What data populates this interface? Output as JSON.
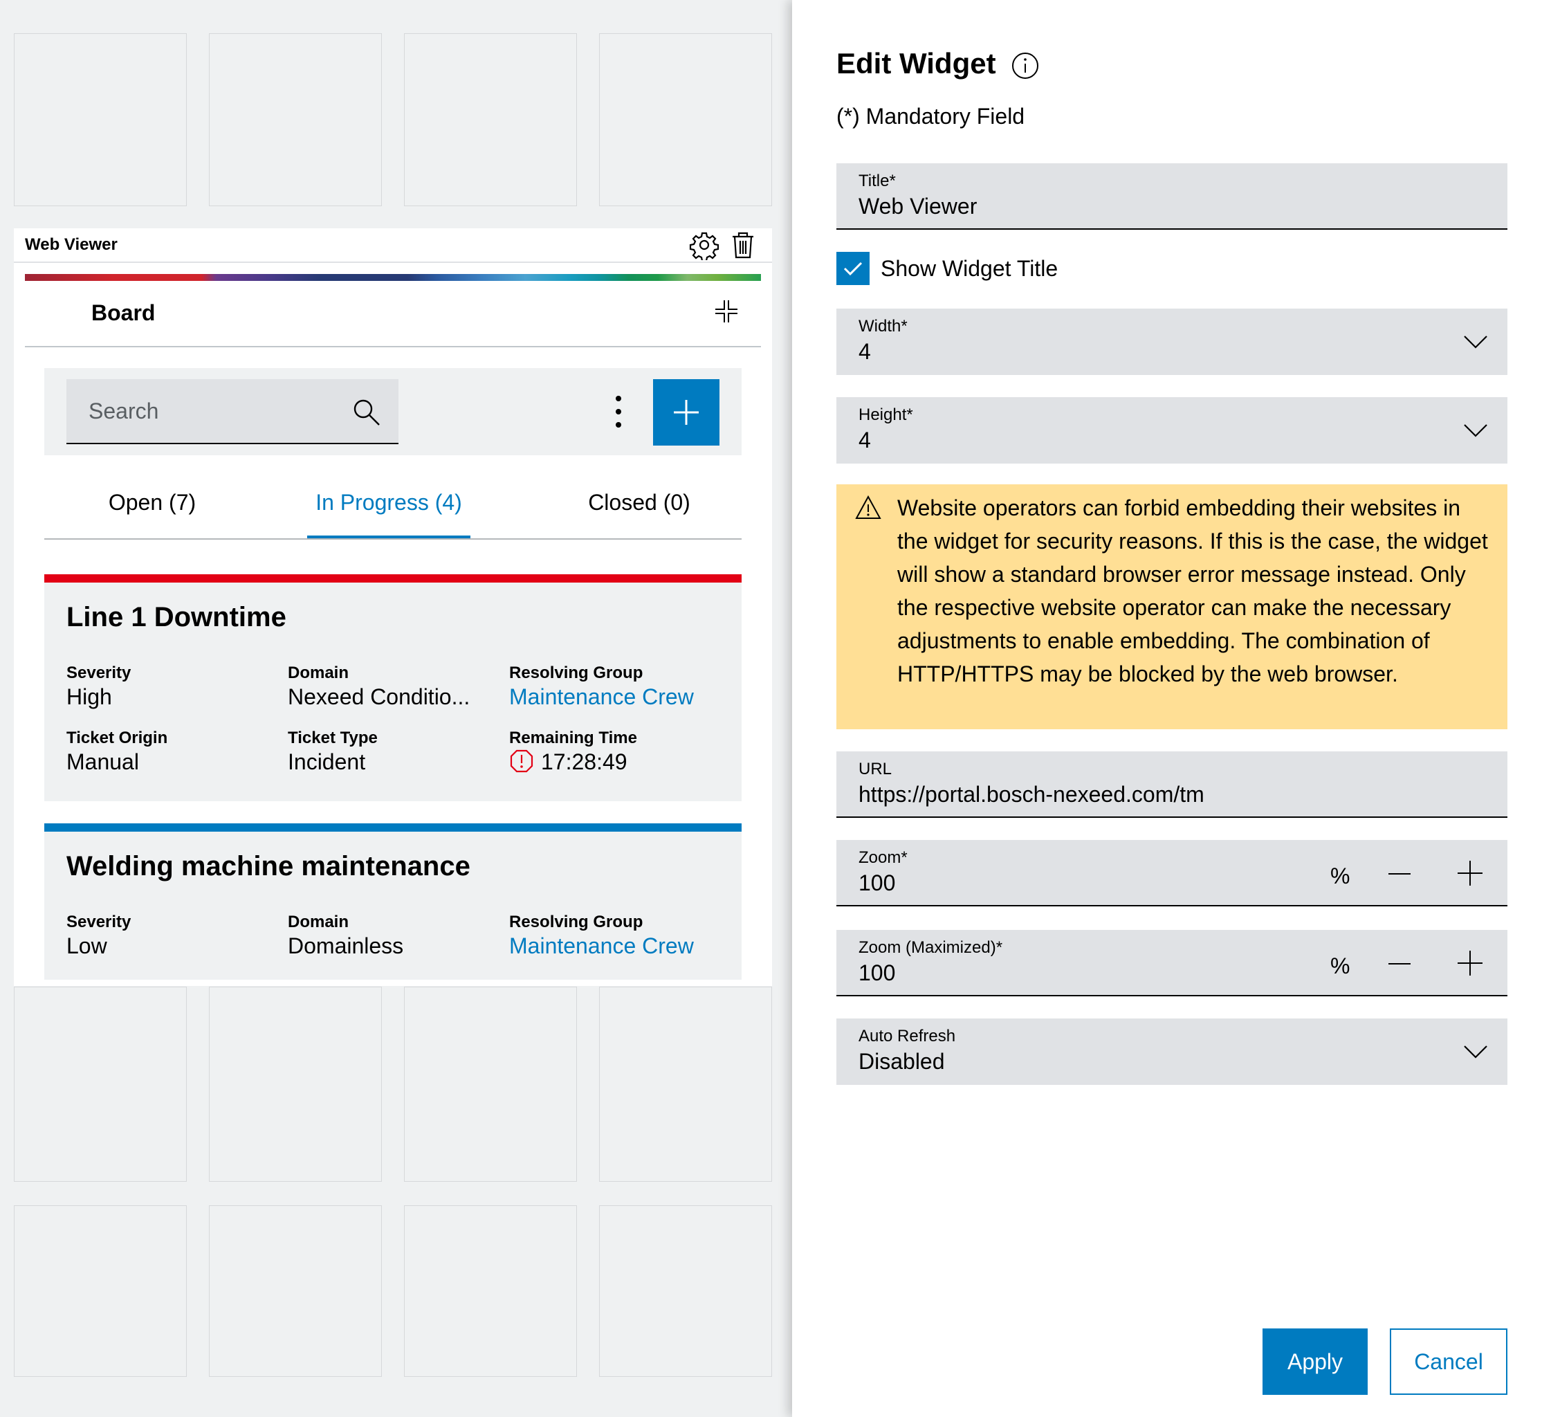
{
  "widget": {
    "title": "Web Viewer",
    "settings_icon": "gear-icon",
    "delete_icon": "trash-icon",
    "board": {
      "title": "Board",
      "search_placeholder": "Search",
      "tabs": [
        {
          "label": "Open (7)"
        },
        {
          "label": "In Progress (4)",
          "active": true
        },
        {
          "label": "Closed (0)"
        }
      ],
      "cards": [
        {
          "title": "Line 1 Downtime",
          "bar_color": "#e20015",
          "fields": [
            {
              "label": "Severity",
              "value": "High"
            },
            {
              "label": "Domain",
              "value": "Nexeed Conditio..."
            },
            {
              "label": "Resolving Group",
              "value": "Maintenance Crew"
            },
            {
              "label": "Ticket Origin",
              "value": "Manual"
            },
            {
              "label": "Ticket Type",
              "value": "Incident"
            },
            {
              "label": "Remaining Time",
              "value": "17:28:49"
            }
          ]
        },
        {
          "title": "Welding machine maintenance",
          "bar_color": "#007bc0",
          "fields": [
            {
              "label": "Severity",
              "value": "Low"
            },
            {
              "label": "Domain",
              "value": "Domainless"
            },
            {
              "label": "Resolving Group",
              "value": "Maintenance Crew"
            }
          ]
        }
      ]
    }
  },
  "panel": {
    "title": "Edit Widget",
    "mandatory_note": "(*) Mandatory Field",
    "title_field": {
      "label": "Title*",
      "value": "Web Viewer"
    },
    "show_title": {
      "label": "Show Widget Title",
      "checked": true
    },
    "width_field": {
      "label": "Width*",
      "value": "4"
    },
    "height_field": {
      "label": "Height*",
      "value": "4"
    },
    "warning": "Website operators can forbid embedding their websites in the widget for security reasons. If this is the case, the widget will show a standard browser error message instead. Only the respective website operator can make the necessary adjustments to enable embedding. The combination of HTTP/HTTPS may be blocked by the web browser.",
    "url_field": {
      "label": "URL",
      "value": "https://portal.bosch-nexeed.com/tm"
    },
    "zoom_field": {
      "label": "Zoom*",
      "value": "100",
      "unit": "%"
    },
    "zoom_max_field": {
      "label": "Zoom (Maximized)*",
      "value": "100",
      "unit": "%"
    },
    "auto_refresh_field": {
      "label": "Auto Refresh",
      "value": "Disabled"
    },
    "apply_label": "Apply",
    "cancel_label": "Cancel"
  },
  "colors": {
    "accent": "#007bc0",
    "warning_bg": "#ffdf95",
    "critical": "#e20015"
  }
}
